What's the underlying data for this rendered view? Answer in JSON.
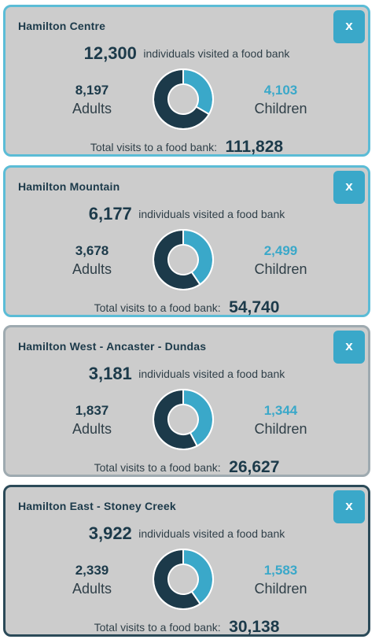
{
  "labels": {
    "close": "x",
    "individuals": "individuals visited a food bank",
    "adults": "Adults",
    "children": "Children",
    "total_visits": "Total visits to a food bank:"
  },
  "colors": {
    "adults_dark": "#1c3a4a",
    "children_accent": "#3aa8c9",
    "card_bg": "#cccccc"
  },
  "cards": [
    {
      "title": "Hamilton Centre",
      "individuals": "12,300",
      "adults": "8,197",
      "children": "4,103",
      "total_visits": "111,828",
      "children_share": 0.334
    },
    {
      "title": "Hamilton Mountain",
      "individuals": "6,177",
      "adults": "3,678",
      "children": "2,499",
      "total_visits": "54,740",
      "children_share": 0.405
    },
    {
      "title": "Hamilton West - Ancaster - Dundas",
      "individuals": "3,181",
      "adults": "1,837",
      "children": "1,344",
      "total_visits": "26,627",
      "children_share": 0.423
    },
    {
      "title": "Hamilton East - Stoney Creek",
      "individuals": "3,922",
      "adults": "2,339",
      "children": "1,583",
      "total_visits": "30,138",
      "children_share": 0.404
    }
  ]
}
